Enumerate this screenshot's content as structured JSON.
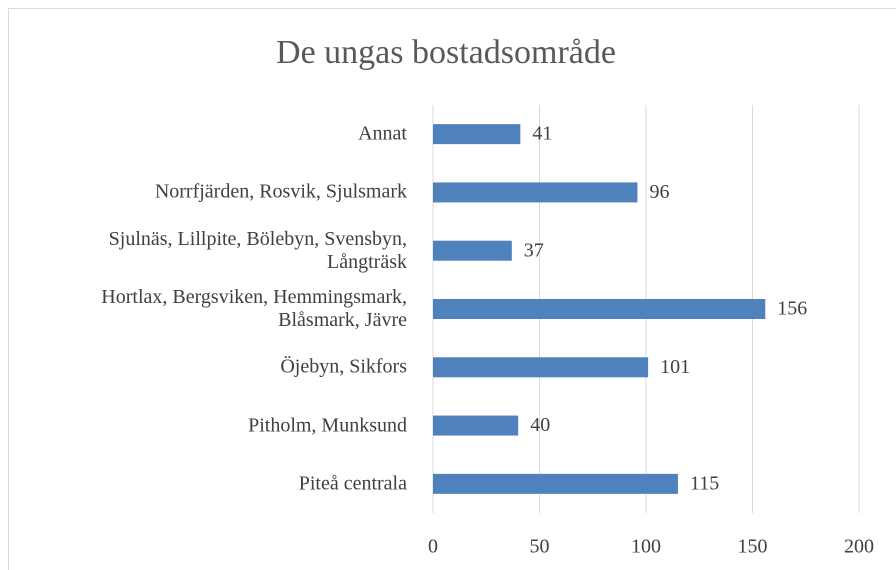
{
  "chart_data": {
    "type": "bar",
    "orientation": "horizontal",
    "title": "De ungas bostadsområde",
    "categories": [
      "Annat",
      "Norrfjärden, Rosvik, Sjulsmark",
      "Sjulnäs, Lillpite, Bölebyn, Svensbyn, Långträsk",
      "Hortlax, Bergsviken, Hemmingsmark, Blåsmark, Jävre",
      "Öjebyn, Sikfors",
      "Pitholm, Munksund",
      "Piteå centrala"
    ],
    "values": [
      41,
      96,
      37,
      156,
      101,
      40,
      115
    ],
    "color": "#4f81bd",
    "xlim": [
      0,
      200
    ],
    "xticks": [
      0,
      50,
      100,
      150,
      200
    ],
    "grid": true,
    "data_labels": true
  }
}
